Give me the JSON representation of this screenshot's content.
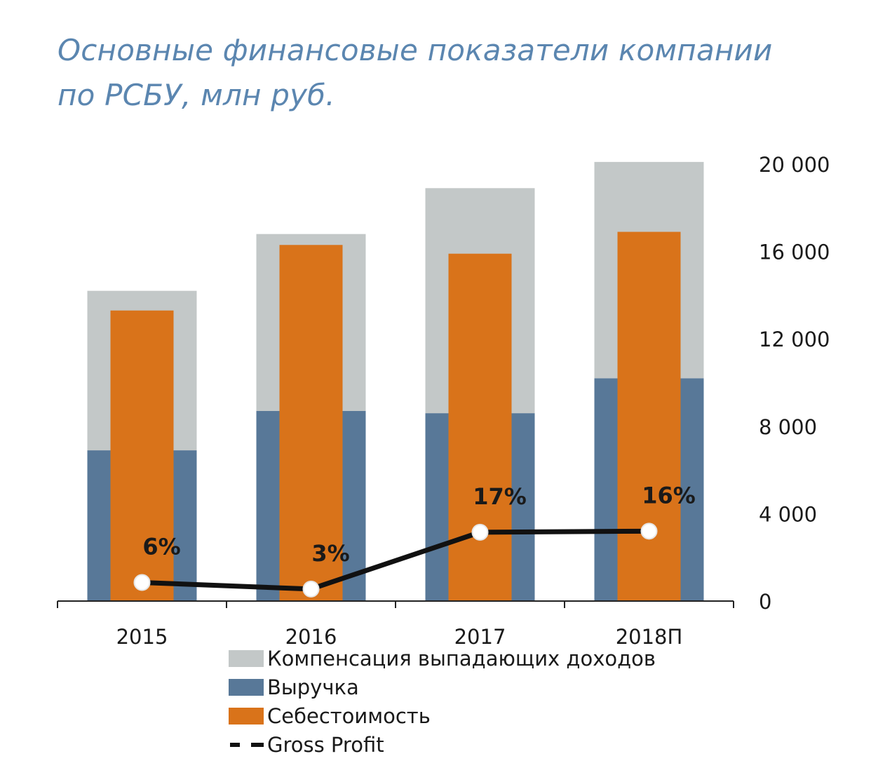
{
  "chart_data": {
    "type": "bar",
    "title_lines": [
      "Основные финансовые показатели компании",
      "по РСБУ, млн руб."
    ],
    "categories": [
      "2015",
      "2016",
      "2017",
      "2018П"
    ],
    "series": [
      {
        "name": "Компенсация выпадающих доходов",
        "kind": "stack-top",
        "values": [
          7300,
          8100,
          10300,
          9900
        ],
        "color": "#c3c8c8"
      },
      {
        "name": "Выручка",
        "kind": "stack-base",
        "values": [
          6900,
          8700,
          8600,
          10200
        ],
        "color": "#587898"
      },
      {
        "name": "Себестоимость",
        "kind": "overlay-bar",
        "values": [
          13300,
          16300,
          15900,
          16900
        ],
        "color": "#d9731a"
      },
      {
        "name": "Gross Profit",
        "kind": "line",
        "values": [
          850,
          550,
          3150,
          3200
        ],
        "labels": [
          "6%",
          "3%",
          "17%",
          "16%"
        ],
        "color": "#111111"
      }
    ],
    "y_axis": {
      "position": "right",
      "min": 0,
      "max": 20000,
      "ticks": [
        0,
        4000,
        8000,
        12000,
        16000,
        20000
      ],
      "tick_labels": [
        "0",
        "4 000",
        "8 000",
        "12 000",
        "16 000",
        "20 000"
      ]
    },
    "legend_position": "bottom",
    "grid": false
  }
}
